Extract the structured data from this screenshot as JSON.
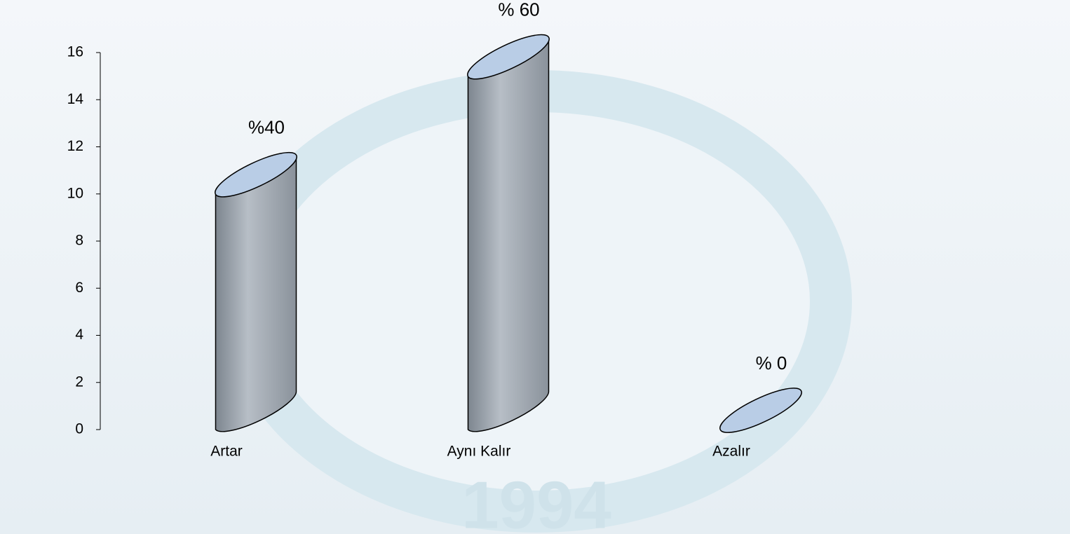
{
  "chart_data": {
    "type": "cylinder",
    "categories": [
      "Artar",
      "Aynı Kalır",
      "Azalır"
    ],
    "values": [
      10,
      15,
      0
    ],
    "value_labels": [
      "%40",
      "% 60",
      "% 0"
    ],
    "ylim": [
      0,
      16
    ],
    "yticks": [
      0,
      2,
      4,
      6,
      8,
      10,
      12,
      14,
      16
    ],
    "body_color": "#9aa2ab",
    "top_color": "#b9cde6"
  },
  "watermark": "1994"
}
